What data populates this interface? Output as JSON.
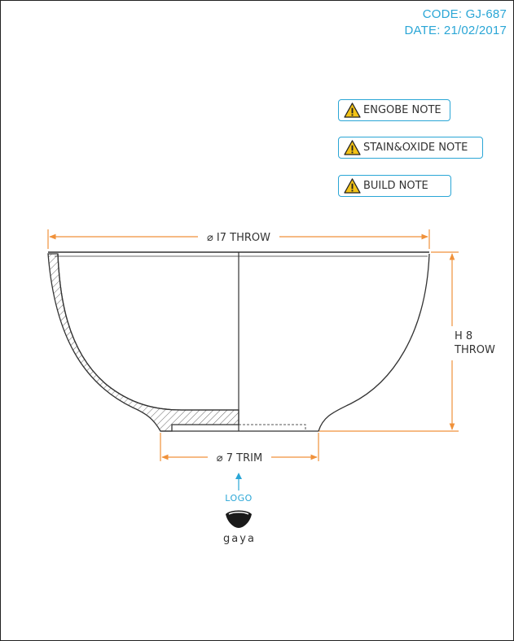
{
  "header": {
    "code": "CODE: GJ-687",
    "date": "DATE: 21/02/2017"
  },
  "notes": [
    {
      "label": "ENGOBE NOTE",
      "icon": "warning-icon"
    },
    {
      "label": "STAIN&OXIDE NOTE",
      "icon": "warning-icon"
    },
    {
      "label": "BUILD NOTE",
      "icon": "warning-icon"
    }
  ],
  "dimensions": {
    "top_diameter": "⌀ I7 THROW",
    "height_line1": "H 8",
    "height_line2": "THROW",
    "foot_diameter": "⌀ 7 TRIM"
  },
  "logo": {
    "label": "LOGO",
    "brand": "gaya"
  },
  "colors": {
    "accent": "#2aa6d6",
    "dimension_line": "#f0913a",
    "outline": "#333333"
  }
}
